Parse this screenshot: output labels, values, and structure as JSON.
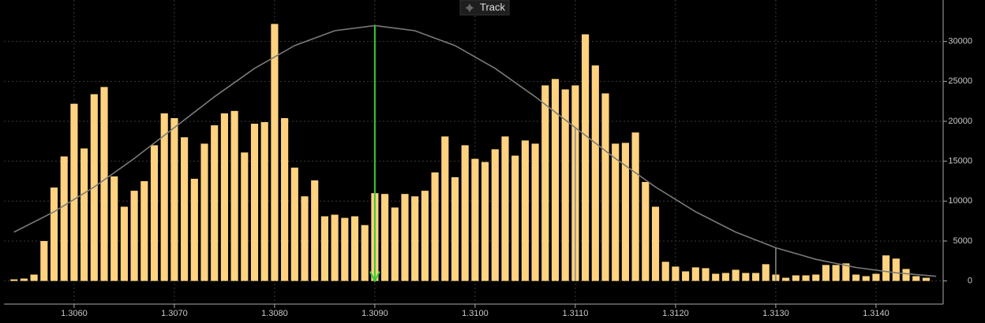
{
  "toolbar": {
    "button": "Track"
  },
  "chart_data": {
    "type": "bar",
    "x": [
      1.3054,
      1.3055,
      1.3056,
      1.3057,
      1.3058,
      1.3059,
      1.306,
      1.3061,
      1.3062,
      1.3063,
      1.3064,
      1.3065,
      1.3066,
      1.3067,
      1.3068,
      1.3069,
      1.307,
      1.3071,
      1.3072,
      1.3073,
      1.3074,
      1.3075,
      1.3076,
      1.3077,
      1.3078,
      1.3079,
      1.308,
      1.3081,
      1.3082,
      1.3083,
      1.3084,
      1.3085,
      1.3086,
      1.3087,
      1.3088,
      1.3089,
      1.309,
      1.3091,
      1.3092,
      1.3093,
      1.3094,
      1.3095,
      1.3096,
      1.3097,
      1.3098,
      1.3099,
      1.31,
      1.3101,
      1.3102,
      1.3103,
      1.3104,
      1.3105,
      1.3106,
      1.3107,
      1.3108,
      1.3109,
      1.311,
      1.3111,
      1.3112,
      1.3113,
      1.3114,
      1.3115,
      1.3116,
      1.3117,
      1.3118,
      1.3119,
      1.312,
      1.3121,
      1.3122,
      1.3123,
      1.3124,
      1.3125,
      1.3126,
      1.3127,
      1.3128,
      1.3129,
      1.313,
      1.3131,
      1.3132,
      1.3133,
      1.3134,
      1.3135,
      1.3136,
      1.3137,
      1.3138,
      1.3139,
      1.314,
      1.3141,
      1.3142,
      1.3143,
      1.3144,
      1.3145
    ],
    "values": [
      200,
      300,
      800,
      5000,
      11700,
      15600,
      22200,
      16600,
      23400,
      24300,
      13100,
      9300,
      11300,
      12500,
      17000,
      21000,
      20400,
      18000,
      12800,
      17200,
      19500,
      21000,
      21300,
      16100,
      19700,
      19900,
      32200,
      20400,
      14200,
      10600,
      12600,
      8100,
      8300,
      7900,
      8100,
      7000,
      11000,
      10900,
      9200,
      10900,
      10600,
      11300,
      13600,
      18100,
      13000,
      17000,
      15300,
      14900,
      16500,
      18100,
      15700,
      17600,
      17200,
      24500,
      25300,
      24000,
      24500,
      30900,
      27000,
      23500,
      17200,
      17300,
      18600,
      12400,
      9300,
      2400,
      1800,
      1200,
      1700,
      1600,
      900,
      1000,
      1400,
      1000,
      1000,
      2100,
      800,
      400,
      700,
      700,
      800,
      2000,
      2000,
      2200,
      800,
      600,
      900,
      3200,
      2800,
      1500,
      600,
      400
    ],
    "color": "#ffd27f",
    "curve": {
      "x": [
        1.3054,
        1.3058,
        1.3062,
        1.3066,
        1.307,
        1.3074,
        1.3078,
        1.3082,
        1.3086,
        1.309,
        1.3094,
        1.3098,
        1.3102,
        1.3106,
        1.311,
        1.3114,
        1.3118,
        1.3122,
        1.3126,
        1.313,
        1.3134,
        1.3138,
        1.3142,
        1.3146
      ],
      "values": [
        6120,
        8670,
        11770,
        15350,
        19210,
        23080,
        26630,
        29490,
        31350,
        32000,
        31350,
        29490,
        26630,
        23080,
        19210,
        15350,
        11770,
        8670,
        6120,
        4160,
        2710,
        1690,
        1020,
        590
      ],
      "color": "#7a7a7a"
    },
    "markers": [
      {
        "x": 1.309,
        "color": "#33cc33",
        "arrow": true
      },
      {
        "x": 1.311,
        "color": "#8a8a8a",
        "arrow": false
      },
      {
        "x": 1.313,
        "color": "#8a8a8a",
        "arrow": false
      }
    ],
    "xlim": [
      1.3053,
      1.31467
    ],
    "ylim": [
      -2900,
      35200
    ],
    "xticks": [
      {
        "value": 1.306,
        "label": "1.3060"
      },
      {
        "value": 1.307,
        "label": "1.3070"
      },
      {
        "value": 1.308,
        "label": "1.3080"
      },
      {
        "value": 1.309,
        "label": "1.3090"
      },
      {
        "value": 1.31,
        "label": "1.3100"
      },
      {
        "value": 1.311,
        "label": "1.3110"
      },
      {
        "value": 1.312,
        "label": "1.3120"
      },
      {
        "value": 1.313,
        "label": "1.3130"
      },
      {
        "value": 1.314,
        "label": "1.3140"
      }
    ],
    "yticks": [
      0,
      5000,
      10000,
      15000,
      20000,
      25000,
      30000
    ],
    "grid": true
  }
}
